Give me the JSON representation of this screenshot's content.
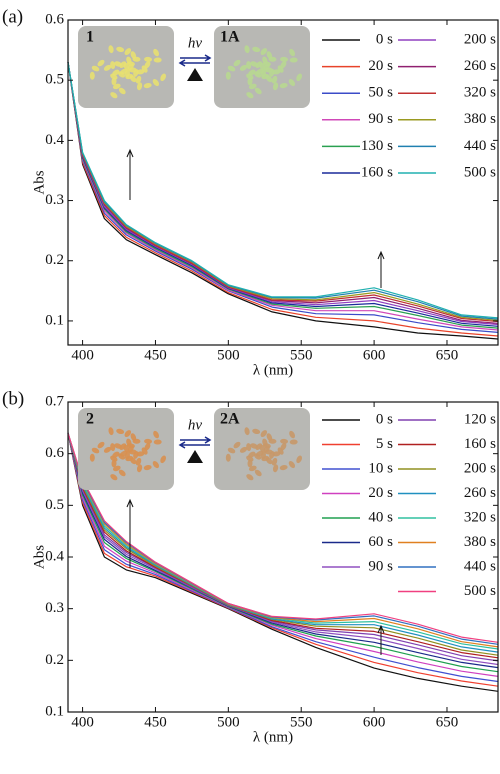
{
  "chart_data": [
    {
      "type": "line",
      "panel_label": "(a)",
      "x_label": "λ (nm)",
      "y_label": "Abs",
      "annotations": {
        "left_label": "1",
        "right_label": "1A",
        "arrow_label": "hv"
      },
      "x": [
        390,
        400,
        415,
        430,
        450,
        475,
        500,
        530,
        560,
        600,
        630,
        660,
        685
      ],
      "xlim": [
        390,
        685
      ],
      "xticks": [
        400,
        450,
        500,
        550,
        600,
        650
      ],
      "ylim": [
        0.06,
        0.6
      ],
      "yticks": [
        0.1,
        0.2,
        0.3,
        0.4,
        0.5,
        0.6
      ],
      "series": [
        {
          "name": "0 s",
          "color": "#111111",
          "values": [
            0.53,
            0.36,
            0.27,
            0.235,
            0.21,
            0.18,
            0.145,
            0.115,
            0.1,
            0.09,
            0.08,
            0.075,
            0.07
          ]
        },
        {
          "name": "20 s",
          "color": "#e8432a",
          "values": [
            0.53,
            0.363,
            0.275,
            0.239,
            0.213,
            0.183,
            0.147,
            0.119,
            0.106,
            0.1,
            0.088,
            0.08,
            0.075
          ]
        },
        {
          "name": "50 s",
          "color": "#3b4bc8",
          "values": [
            0.53,
            0.366,
            0.279,
            0.243,
            0.216,
            0.186,
            0.15,
            0.123,
            0.112,
            0.11,
            0.097,
            0.086,
            0.081
          ]
        },
        {
          "name": "90 s",
          "color": "#d048b8",
          "values": [
            0.53,
            0.368,
            0.283,
            0.246,
            0.218,
            0.188,
            0.151,
            0.126,
            0.117,
            0.117,
            0.103,
            0.09,
            0.085
          ]
        },
        {
          "name": "130 s",
          "color": "#2aa050",
          "values": [
            0.53,
            0.37,
            0.286,
            0.248,
            0.22,
            0.19,
            0.153,
            0.128,
            0.121,
            0.124,
            0.109,
            0.093,
            0.088
          ]
        },
        {
          "name": "160 s",
          "color": "#1a2a9a",
          "values": [
            0.53,
            0.372,
            0.288,
            0.25,
            0.222,
            0.192,
            0.154,
            0.13,
            0.124,
            0.129,
            0.113,
            0.096,
            0.091
          ]
        },
        {
          "name": "200 s",
          "color": "#9040c0",
          "values": [
            0.53,
            0.374,
            0.29,
            0.252,
            0.224,
            0.194,
            0.155,
            0.132,
            0.127,
            0.134,
            0.117,
            0.099,
            0.094
          ]
        },
        {
          "name": "260 s",
          "color": "#902070",
          "values": [
            0.53,
            0.375,
            0.293,
            0.254,
            0.225,
            0.195,
            0.156,
            0.134,
            0.13,
            0.139,
            0.121,
            0.101,
            0.096
          ]
        },
        {
          "name": "320 s",
          "color": "#c03030",
          "values": [
            0.53,
            0.376,
            0.295,
            0.256,
            0.226,
            0.196,
            0.157,
            0.135,
            0.133,
            0.143,
            0.125,
            0.104,
            0.099
          ]
        },
        {
          "name": "380 s",
          "color": "#9a9a20",
          "values": [
            0.53,
            0.378,
            0.296,
            0.257,
            0.228,
            0.198,
            0.158,
            0.137,
            0.135,
            0.147,
            0.128,
            0.106,
            0.101
          ]
        },
        {
          "name": "440 s",
          "color": "#2080b0",
          "values": [
            0.53,
            0.379,
            0.298,
            0.259,
            0.229,
            0.199,
            0.159,
            0.139,
            0.138,
            0.151,
            0.132,
            0.108,
            0.103
          ]
        },
        {
          "name": "500 s",
          "color": "#20b0b0",
          "values": [
            0.53,
            0.38,
            0.3,
            0.26,
            0.23,
            0.2,
            0.16,
            0.14,
            0.14,
            0.155,
            0.135,
            0.11,
            0.105
          ]
        }
      ]
    },
    {
      "type": "line",
      "panel_label": "(b)",
      "x_label": "λ (nm)",
      "y_label": "Abs",
      "annotations": {
        "left_label": "2",
        "right_label": "2A",
        "arrow_label": "hv"
      },
      "x": [
        390,
        400,
        415,
        430,
        450,
        475,
        500,
        530,
        560,
        600,
        630,
        660,
        685
      ],
      "xlim": [
        390,
        685
      ],
      "xticks": [
        400,
        450,
        500,
        550,
        600,
        650
      ],
      "ylim": [
        0.1,
        0.7
      ],
      "yticks": [
        0.1,
        0.2,
        0.3,
        0.4,
        0.5,
        0.6,
        0.7
      ],
      "series": [
        {
          "name": "0 s",
          "color": "#111111",
          "values": [
            0.64,
            0.5,
            0.4,
            0.375,
            0.36,
            0.33,
            0.3,
            0.26,
            0.225,
            0.185,
            0.165,
            0.15,
            0.14
          ]
        },
        {
          "name": "5 s",
          "color": "#f04030",
          "values": [
            0.64,
            0.505,
            0.407,
            0.381,
            0.363,
            0.332,
            0.301,
            0.263,
            0.231,
            0.196,
            0.176,
            0.16,
            0.15
          ]
        },
        {
          "name": "10 s",
          "color": "#4050d0",
          "values": [
            0.64,
            0.51,
            0.414,
            0.386,
            0.366,
            0.334,
            0.302,
            0.265,
            0.236,
            0.206,
            0.186,
            0.169,
            0.159
          ]
        },
        {
          "name": "20 s",
          "color": "#d040c0",
          "values": [
            0.64,
            0.515,
            0.421,
            0.392,
            0.369,
            0.336,
            0.303,
            0.268,
            0.242,
            0.217,
            0.197,
            0.179,
            0.169
          ]
        },
        {
          "name": "40 s",
          "color": "#20a050",
          "values": [
            0.64,
            0.52,
            0.428,
            0.397,
            0.372,
            0.338,
            0.304,
            0.27,
            0.247,
            0.227,
            0.207,
            0.188,
            0.178
          ]
        },
        {
          "name": "60 s",
          "color": "#1a2a8a",
          "values": [
            0.64,
            0.524,
            0.434,
            0.401,
            0.374,
            0.34,
            0.305,
            0.272,
            0.251,
            0.235,
            0.215,
            0.196,
            0.186
          ]
        },
        {
          "name": "90 s",
          "color": "#9050c0",
          "values": [
            0.64,
            0.528,
            0.439,
            0.405,
            0.377,
            0.341,
            0.306,
            0.274,
            0.255,
            0.243,
            0.223,
            0.202,
            0.192
          ]
        },
        {
          "name": "120 s",
          "color": "#8040b0",
          "values": [
            0.64,
            0.531,
            0.443,
            0.409,
            0.379,
            0.342,
            0.306,
            0.276,
            0.259,
            0.25,
            0.23,
            0.209,
            0.199
          ]
        },
        {
          "name": "160 s",
          "color": "#b02020",
          "values": [
            0.64,
            0.534,
            0.448,
            0.412,
            0.38,
            0.344,
            0.307,
            0.277,
            0.262,
            0.256,
            0.236,
            0.215,
            0.205
          ]
        },
        {
          "name": "200 s",
          "color": "#909020",
          "values": [
            0.64,
            0.537,
            0.452,
            0.416,
            0.382,
            0.345,
            0.307,
            0.279,
            0.266,
            0.263,
            0.243,
            0.22,
            0.21
          ]
        },
        {
          "name": "260 s",
          "color": "#2090c0",
          "values": [
            0.64,
            0.54,
            0.456,
            0.419,
            0.384,
            0.346,
            0.308,
            0.28,
            0.269,
            0.269,
            0.249,
            0.226,
            0.216
          ]
        },
        {
          "name": "320 s",
          "color": "#30c0a0",
          "values": [
            0.64,
            0.543,
            0.46,
            0.422,
            0.386,
            0.347,
            0.309,
            0.282,
            0.272,
            0.275,
            0.255,
            0.232,
            0.222
          ]
        },
        {
          "name": "380 s",
          "color": "#e08020",
          "values": [
            0.64,
            0.546,
            0.464,
            0.425,
            0.387,
            0.348,
            0.309,
            0.283,
            0.275,
            0.281,
            0.261,
            0.236,
            0.226
          ]
        },
        {
          "name": "440 s",
          "color": "#3070c0",
          "values": [
            0.64,
            0.548,
            0.467,
            0.428,
            0.389,
            0.349,
            0.31,
            0.284,
            0.278,
            0.286,
            0.266,
            0.241,
            0.231
          ]
        },
        {
          "name": "500 s",
          "color": "#f04080",
          "values": [
            0.64,
            0.55,
            0.47,
            0.43,
            0.39,
            0.35,
            0.31,
            0.285,
            0.28,
            0.29,
            0.27,
            0.245,
            0.235
          ]
        }
      ]
    }
  ]
}
